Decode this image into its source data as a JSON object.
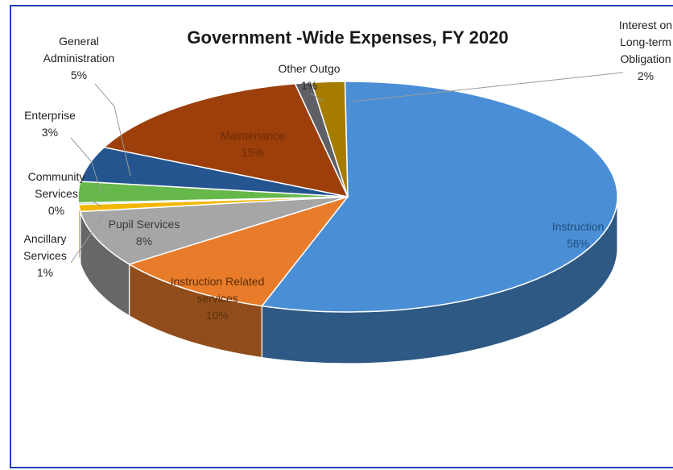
{
  "chart_data": {
    "type": "pie",
    "title": "Government -Wide Expenses, FY 2020",
    "slices": [
      {
        "label": "Instruction",
        "value_label": "56%",
        "value": 56,
        "color": "#4a8fd6"
      },
      {
        "label": "Instruction Related services",
        "value_label": "10%",
        "value": 10,
        "color": "#e87c2b"
      },
      {
        "label": "Pupil Services",
        "value_label": "8%",
        "value": 8,
        "color": "#a6a6a6"
      },
      {
        "label": "Ancillary Services",
        "value_label": "1%",
        "value": 1,
        "color": "#f2b705"
      },
      {
        "label": "Community Services",
        "value_label": "0%",
        "value": 0,
        "color": "#5b9bd5"
      },
      {
        "label": "Enterprise",
        "value_label": "3%",
        "value": 3,
        "color": "#66b84a"
      },
      {
        "label": "General Administration",
        "value_label": "5%",
        "value": 5,
        "color": "#24558f"
      },
      {
        "label": "Maintenance",
        "value_label": "15%",
        "value": 15,
        "color": "#9c3f0b"
      },
      {
        "label": "Other Outgo",
        "value_label": "1%",
        "value": 1,
        "color": "#5f6066"
      },
      {
        "label": "Interest on Long-term Obligation",
        "value_label": "2%",
        "value": 2,
        "color": "#a57c00"
      }
    ]
  }
}
